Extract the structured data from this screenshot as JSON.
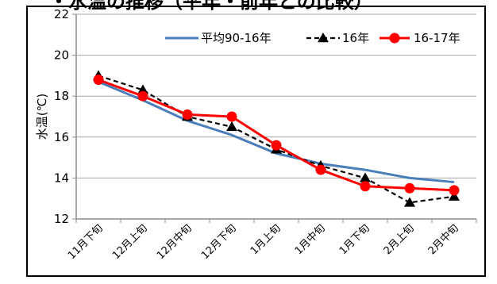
{
  "chart_data": {
    "type": "line",
    "title": "",
    "xlabel": "",
    "ylabel": "水温(℃)",
    "ylim": [
      12,
      22
    ],
    "yticks": [
      12,
      14,
      16,
      18,
      20,
      22
    ],
    "grid": {
      "y": true,
      "x": false
    },
    "legend_position": "top-right",
    "categories": [
      "11月下旬",
      "12月上旬",
      "12月中旬",
      "12月下旬",
      "1月上旬",
      "1月中旬",
      "1月下旬",
      "2月上旬",
      "2月中旬"
    ],
    "series": [
      {
        "name": "平均90-16年",
        "color": "#4a7ebb",
        "style": "solid",
        "marker": "none",
        "values": [
          18.7,
          17.8,
          16.8,
          16.1,
          15.2,
          14.7,
          14.4,
          14.0,
          13.8
        ]
      },
      {
        "name": "16年",
        "color": "#000000",
        "style": "dashed",
        "marker": "triangle",
        "values": [
          19.0,
          18.3,
          17.0,
          16.5,
          15.4,
          14.6,
          14.0,
          12.8,
          13.1
        ]
      },
      {
        "name": "16-17年",
        "color": "#ff0000",
        "style": "solid",
        "marker": "circle",
        "values": [
          18.8,
          18.0,
          17.1,
          17.0,
          15.6,
          14.4,
          13.6,
          13.5,
          13.4
        ]
      }
    ]
  }
}
